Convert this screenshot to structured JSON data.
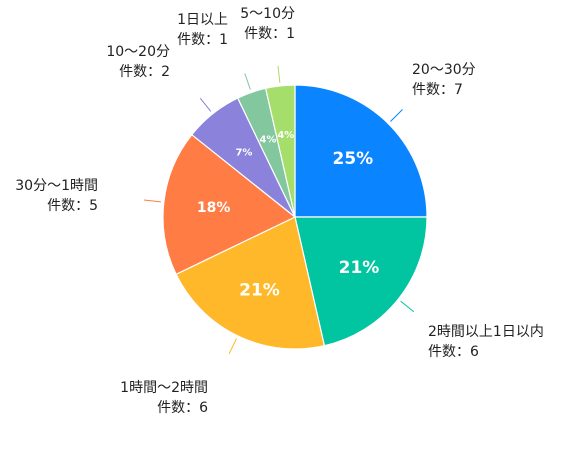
{
  "chart_data": {
    "type": "pie",
    "title": "",
    "legend": "none",
    "slices": [
      {
        "category": "20〜30分",
        "count_text": "件数：7",
        "value": 7,
        "percent_label": "25%",
        "color": "#0A84FF"
      },
      {
        "category": "2時間以上1日以内",
        "count_text": "件数：6",
        "value": 6,
        "percent_label": "21%",
        "color": "#00C5A0"
      },
      {
        "category": "1時間〜2時間",
        "count_text": "件数：6",
        "value": 6,
        "percent_label": "21%",
        "color": "#FFB829"
      },
      {
        "category": "30分〜1時間",
        "count_text": "件数：5",
        "value": 5,
        "percent_label": "18%",
        "color": "#FF7C45"
      },
      {
        "category": "10〜20分",
        "count_text": "件数：2",
        "value": 2,
        "percent_label": "7%",
        "color": "#8A82DB"
      },
      {
        "category": "1日以上",
        "count_text": "件数：1",
        "value": 1,
        "percent_label": "4%",
        "color": "#82C79E"
      },
      {
        "category": "5〜10分",
        "count_text": "件数：1",
        "value": 1,
        "percent_label": "4%",
        "color": "#A5DE6A"
      }
    ]
  }
}
